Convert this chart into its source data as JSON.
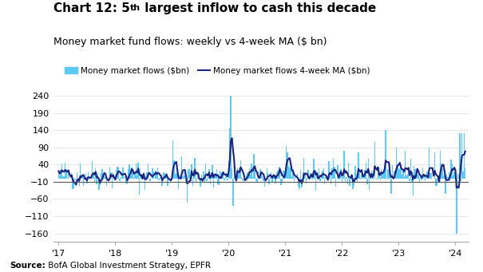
{
  "title_bold": "Chart 12: 5",
  "title_superscript": "th",
  "title_rest": " largest inflow to cash this decade",
  "subtitle": "Money market fund flows: weekly vs 4-week MA ($ bn)",
  "source_bold": "Source:",
  "source_normal": " BofA Global Investment Strategy, EPFR",
  "legend_bar": "Money market flows ($bn)",
  "legend_line": "Money market flows 4-week MA ($bn)",
  "bar_color": "#5bc8f5",
  "line_color": "#1a237e",
  "zero_line_color": "#555555",
  "yticks": [
    -160,
    -110,
    -60,
    -10,
    40,
    90,
    140,
    190,
    240
  ],
  "xtick_labels": [
    "'17",
    "'18",
    "'19",
    "'20",
    "'21",
    "'22",
    "'23",
    "'24"
  ],
  "ylim": [
    -185,
    265
  ],
  "background_color": "#ffffff",
  "fig_background": "#ffffff"
}
